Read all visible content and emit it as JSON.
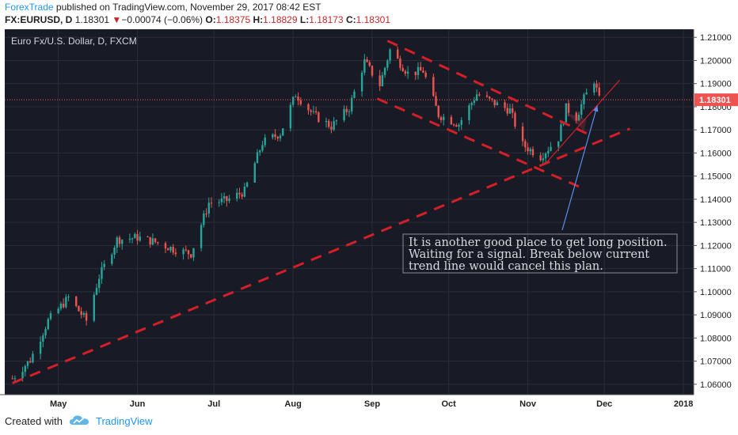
{
  "header": {
    "publisher": "ForexTrade",
    "published_text": "published on TradingView.com, November 29, 2017 08:42 EST",
    "symbol": "FX:EURUSD, D",
    "last": "1.18301",
    "change_arrow": "▼",
    "change": "−0.00074 (−0.06%)",
    "o_label": "O:",
    "o_value": "1.18375",
    "h_label": "H:",
    "h_value": "1.18829",
    "l_label": "L:",
    "l_value": "1.18173",
    "c_label": "C:",
    "c_value": "1.18301"
  },
  "footer": {
    "created_with": "Created with",
    "brand": "TradingView",
    "logo_icon": "tradingview-cloud-icon"
  },
  "colors": {
    "background": "#181b25",
    "grid": "#2a2e39",
    "up_candle": "#26a69a",
    "down_candle": "#ef5350",
    "trend_line": "#d41f28",
    "price_label_bg": "#ef5350",
    "annotation_arrow": "#5b8def"
  },
  "chart_data": {
    "type": "candlestick",
    "title": "Euro Fx/U.S. Dollar, D, FXCM",
    "x_ticks": [
      "May",
      "Jun",
      "Jul",
      "Aug",
      "Sep",
      "Oct",
      "Nov",
      "Dec",
      "2018"
    ],
    "y_ticks": [
      "1.21000",
      "1.20000",
      "1.19000",
      "1.18000",
      "1.17000",
      "1.16000",
      "1.15000",
      "1.14000",
      "1.13000",
      "1.12000",
      "1.11000",
      "1.10000",
      "1.09000",
      "1.08000",
      "1.07000",
      "1.06000"
    ],
    "ylim": [
      1.0555,
      1.2135
    ],
    "x_range": [
      "2017-04-10",
      "2018-01-05"
    ],
    "current_price": "1.18301",
    "price_path": [
      [
        "2017-04-13",
        1.0625
      ],
      [
        "2017-04-20",
        1.0705
      ],
      [
        "2017-04-27",
        1.0875
      ],
      [
        "2017-05-05",
        1.0975
      ],
      [
        "2017-05-12",
        1.0875
      ],
      [
        "2017-05-17",
        1.1065
      ],
      [
        "2017-05-24",
        1.1225
      ],
      [
        "2017-06-01",
        1.1235
      ],
      [
        "2017-06-08",
        1.1215
      ],
      [
        "2017-06-15",
        1.1185
      ],
      [
        "2017-06-22",
        1.1165
      ],
      [
        "2017-06-29",
        1.1385
      ],
      [
        "2017-07-06",
        1.1395
      ],
      [
        "2017-07-13",
        1.1435
      ],
      [
        "2017-07-20",
        1.1645
      ],
      [
        "2017-07-27",
        1.1685
      ],
      [
        "2017-08-02",
        1.1855
      ],
      [
        "2017-08-09",
        1.1765
      ],
      [
        "2017-08-16",
        1.1715
      ],
      [
        "2017-08-23",
        1.1795
      ],
      [
        "2017-08-29",
        1.1995
      ],
      [
        "2017-09-04",
        1.1895
      ],
      [
        "2017-09-08",
        1.2045
      ],
      [
        "2017-09-15",
        1.1945
      ],
      [
        "2017-09-21",
        1.1955
      ],
      [
        "2017-09-27",
        1.1765
      ],
      [
        "2017-10-05",
        1.1725
      ],
      [
        "2017-10-12",
        1.1855
      ],
      [
        "2017-10-19",
        1.1815
      ],
      [
        "2017-10-25",
        1.1785
      ],
      [
        "2017-10-30",
        1.1635
      ],
      [
        "2017-11-06",
        1.1585
      ],
      [
        "2017-11-13",
        1.1665
      ],
      [
        "2017-11-16",
        1.1795
      ],
      [
        "2017-11-20",
        1.1755
      ],
      [
        "2017-11-23",
        1.1835
      ],
      [
        "2017-11-27",
        1.1915
      ],
      [
        "2017-11-29",
        1.183
      ]
    ],
    "annotations": [
      {
        "type": "trend_line",
        "style": "dashed",
        "from": [
          "2017-04-13",
          1.0605
        ],
        "to": [
          "2017-12-11",
          1.1705
        ]
      },
      {
        "type": "trend_line",
        "style": "dashed",
        "from": [
          "2017-09-07",
          1.2085
        ],
        "to": [
          "2017-11-24",
          1.1685
        ]
      },
      {
        "type": "trend_line",
        "style": "dashed",
        "from": [
          "2017-09-03",
          1.1835
        ],
        "to": [
          "2017-11-21",
          1.1455
        ]
      },
      {
        "type": "trend_line",
        "style": "solid",
        "from": [
          "2017-11-08",
          1.1555
        ],
        "to": [
          "2017-12-07",
          1.1915
        ]
      },
      {
        "type": "text",
        "lines": [
          "It is another good place to get long position.",
          "Waiting for a signal. Break below current",
          "trend line would cancel this plan."
        ]
      }
    ]
  }
}
